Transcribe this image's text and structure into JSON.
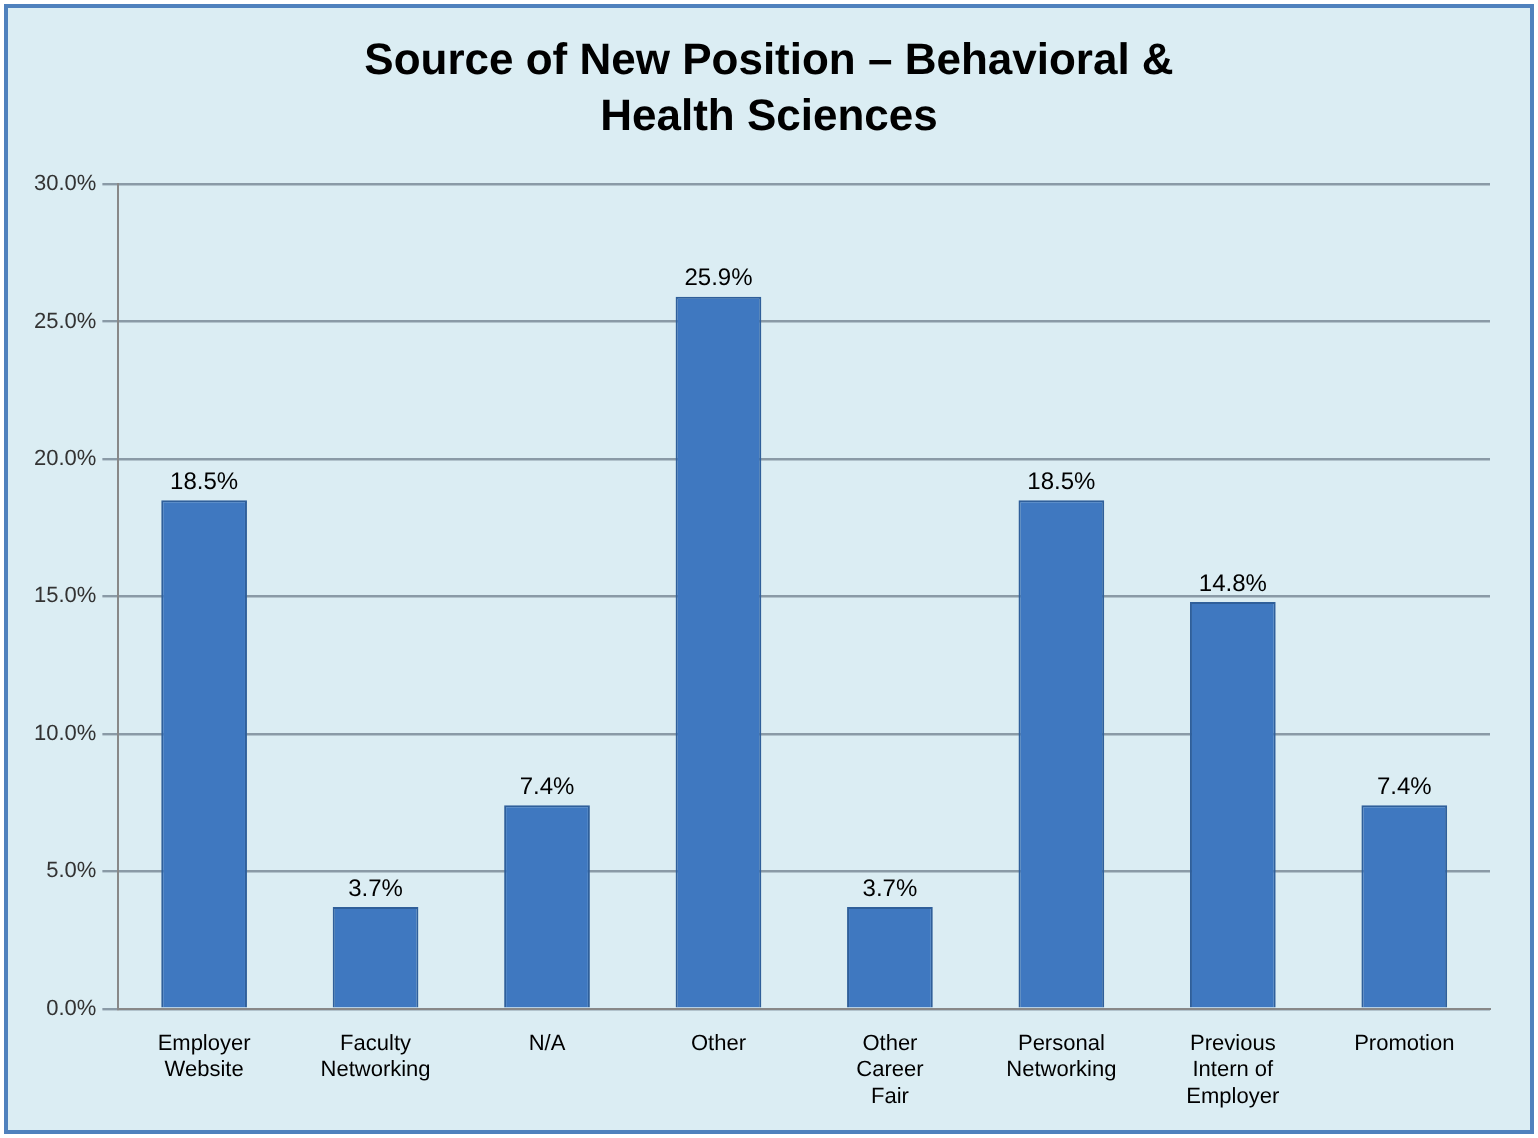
{
  "chart_data": {
    "type": "bar",
    "title": "Source of New Position – Behavioral & Health Sciences",
    "categories": [
      "Employer Website",
      "Faculty Networking",
      "N/A",
      "Other",
      "Other Career Fair",
      "Personal Networking",
      "Previous Intern of Employer",
      "Promotion"
    ],
    "values": [
      18.5,
      3.7,
      7.4,
      25.9,
      3.7,
      18.5,
      14.8,
      7.4
    ],
    "value_labels": [
      "18.5%",
      "3.7%",
      "7.4%",
      "25.9%",
      "3.7%",
      "18.5%",
      "14.8%",
      "7.4%"
    ],
    "color": "#3f78c0",
    "ylim": [
      0,
      30
    ],
    "yticks": [
      {
        "value": 0,
        "label": "0.0%"
      },
      {
        "value": 5,
        "label": "5.0%"
      },
      {
        "value": 10,
        "label": "10.0%"
      },
      {
        "value": 15,
        "label": "15.0%"
      },
      {
        "value": 20,
        "label": "20.0%"
      },
      {
        "value": 25,
        "label": "25.0%"
      },
      {
        "value": 30,
        "label": "30.0%"
      }
    ],
    "grid": "y",
    "legend": false
  }
}
